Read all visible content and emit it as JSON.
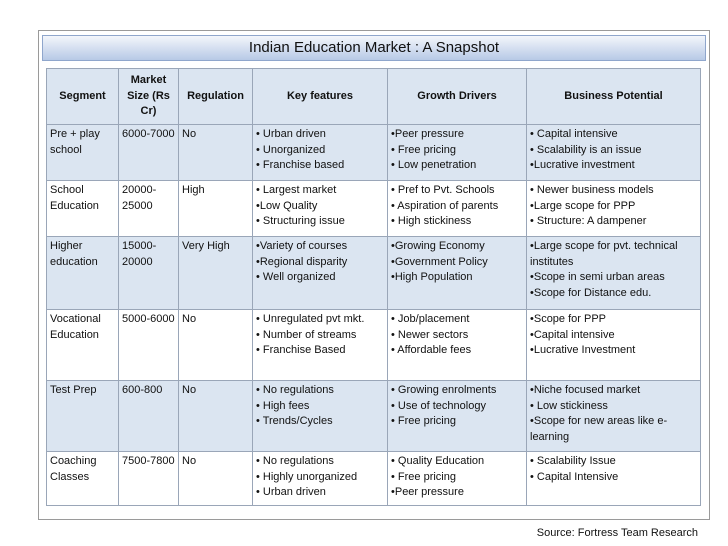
{
  "title": "Indian Education Market : A Snapshot",
  "table": {
    "header": [
      "Segment",
      "Market Size (Rs Cr)",
      "Regulation",
      "Key features",
      "Growth Drivers",
      "Business Potential"
    ],
    "rows": [
      [
        "Pre + play school",
        "6000-7000",
        "No",
        [
          "• Urban driven",
          "• Unorganized",
          "• Franchise based"
        ],
        [
          "•Peer pressure",
          "• Free pricing",
          "• Low penetration"
        ],
        [
          "• Capital intensive",
          "• Scalability is an issue",
          "•Lucrative investment"
        ]
      ],
      [
        "School Education",
        "20000-25000",
        "High",
        [
          "• Largest market",
          "•Low  Quality",
          "• Structuring issue"
        ],
        [
          "• Pref to Pvt. Schools",
          "• Aspiration of parents",
          "• High stickiness"
        ],
        [
          "• Newer business models",
          "•Large scope for PPP",
          "• Structure: A dampener"
        ]
      ],
      [
        "Higher education",
        "15000-20000",
        "Very High",
        [
          "•Variety of courses",
          "•Regional disparity",
          "• Well organized"
        ],
        [
          "•Growing Economy",
          "•Government Policy",
          "•High Population"
        ],
        [
          "•Large scope for pvt. technical institutes",
          "•Scope in semi urban areas",
          "•Scope for Distance edu."
        ]
      ],
      [
        "Vocational Education",
        "5000-6000",
        "No",
        [
          "• Unregulated pvt mkt.",
          "• Number of streams",
          "• Franchise Based"
        ],
        [
          "• Job/placement",
          "• Newer sectors",
          "• Affordable fees"
        ],
        [
          "•Scope for PPP",
          "•Capital intensive",
          "•Lucrative Investment"
        ]
      ],
      [
        "Test Prep",
        "600-800",
        "No",
        [
          "• No regulations",
          "• High fees",
          "• Trends/Cycles"
        ],
        [
          "• Growing enrolments",
          "• Use of technology",
          "• Free pricing"
        ],
        [
          "•Niche focused market",
          "• Low stickiness",
          "•Scope for new areas like e-learning"
        ]
      ],
      [
        "Coaching Classes",
        "7500-7800",
        "No",
        [
          "• No regulations",
          "• Highly unorganized",
          "• Urban driven"
        ],
        [
          "• Quality Education",
          "• Free pricing",
          "•Peer pressure"
        ],
        [
          "• Scalability Issue",
          "• Capital Intensive"
        ]
      ]
    ]
  },
  "source": "Source: Fortress Team Research"
}
